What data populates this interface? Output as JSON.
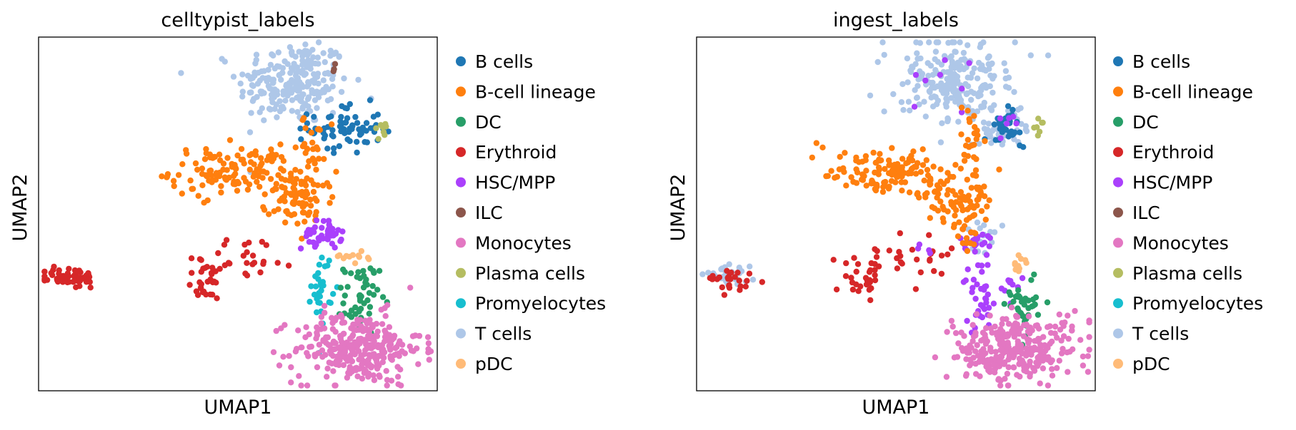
{
  "chart_data": [
    {
      "type": "scatter",
      "title": "celltypist_labels",
      "xlabel": "UMAP1",
      "ylabel": "UMAP2",
      "grid": false,
      "ticks": false,
      "legend_placement": "right",
      "categories": [
        "B cells",
        "B-cell lineage",
        "DC",
        "Erythroid",
        "HSC/MPP",
        "ILC",
        "Monocytes",
        "Plasma cells",
        "Promyelocytes",
        "T cells",
        "pDC"
      ],
      "colors": [
        "#1f77b4",
        "#ff7f0e",
        "#279e68",
        "#d62728",
        "#aa40fc",
        "#8c564b",
        "#e377c2",
        "#b5bd61",
        "#17becf",
        "#aec7e8",
        "#ffbb78"
      ],
      "clusters": [
        {
          "label": "T cells",
          "cx": 0.64,
          "cy": 0.87,
          "sx": 0.07,
          "sy": 0.06,
          "n": 230
        },
        {
          "label": "ILC",
          "cx": 0.74,
          "cy": 0.91,
          "sx": 0.006,
          "sy": 0.006,
          "n": 3
        },
        {
          "label": "B cells",
          "cx": 0.77,
          "cy": 0.74,
          "sx": 0.045,
          "sy": 0.035,
          "n": 70
        },
        {
          "label": "Plasma cells",
          "cx": 0.86,
          "cy": 0.74,
          "sx": 0.01,
          "sy": 0.012,
          "n": 8
        },
        {
          "label": "B-cell lineage",
          "cx": 0.49,
          "cy": 0.62,
          "sx": 0.08,
          "sy": 0.035,
          "n": 130
        },
        {
          "label": "B-cell lineage",
          "cx": 0.66,
          "cy": 0.54,
          "sx": 0.04,
          "sy": 0.04,
          "n": 80
        },
        {
          "label": "B-cell lineage",
          "cx": 0.69,
          "cy": 0.7,
          "sx": 0.015,
          "sy": 0.04,
          "n": 25
        },
        {
          "label": "HSC/MPP",
          "cx": 0.71,
          "cy": 0.44,
          "sx": 0.025,
          "sy": 0.02,
          "n": 40
        },
        {
          "label": "pDC",
          "cx": 0.79,
          "cy": 0.38,
          "sx": 0.025,
          "sy": 0.01,
          "n": 12
        },
        {
          "label": "Promyelocytes",
          "cx": 0.71,
          "cy": 0.3,
          "sx": 0.013,
          "sy": 0.05,
          "n": 30
        },
        {
          "label": "DC",
          "cx": 0.81,
          "cy": 0.26,
          "sx": 0.022,
          "sy": 0.05,
          "n": 50
        },
        {
          "label": "Monocytes",
          "cx": 0.8,
          "cy": 0.12,
          "sx": 0.08,
          "sy": 0.05,
          "n": 300
        },
        {
          "label": "Erythroid",
          "cx": 0.08,
          "cy": 0.32,
          "sx": 0.035,
          "sy": 0.015,
          "n": 55
        },
        {
          "label": "Erythroid",
          "cx": 0.42,
          "cy": 0.31,
          "sx": 0.025,
          "sy": 0.03,
          "n": 30
        },
        {
          "label": "Erythroid",
          "cx": 0.53,
          "cy": 0.38,
          "sx": 0.06,
          "sy": 0.03,
          "n": 25
        }
      ]
    },
    {
      "type": "scatter",
      "title": "ingest_labels",
      "xlabel": "UMAP1",
      "ylabel": "UMAP2",
      "grid": false,
      "ticks": false,
      "legend_placement": "right",
      "categories": [
        "B cells",
        "B-cell lineage",
        "DC",
        "Erythroid",
        "HSC/MPP",
        "ILC",
        "Monocytes",
        "Plasma cells",
        "Promyelocytes",
        "T cells",
        "pDC"
      ],
      "colors": [
        "#1f77b4",
        "#ff7f0e",
        "#279e68",
        "#d62728",
        "#aa40fc",
        "#8c564b",
        "#e377c2",
        "#b5bd61",
        "#17becf",
        "#aec7e8",
        "#ffbb78"
      ],
      "clusters": [
        {
          "label": "T cells",
          "cx": 0.64,
          "cy": 0.87,
          "sx": 0.07,
          "sy": 0.06,
          "n": 220
        },
        {
          "label": "HSC/MPP",
          "cx": 0.64,
          "cy": 0.87,
          "sx": 0.06,
          "sy": 0.05,
          "n": 8
        },
        {
          "label": "T cells",
          "cx": 0.77,
          "cy": 0.74,
          "sx": 0.04,
          "sy": 0.035,
          "n": 40
        },
        {
          "label": "B cells",
          "cx": 0.79,
          "cy": 0.74,
          "sx": 0.03,
          "sy": 0.03,
          "n": 30
        },
        {
          "label": "HSC/MPP",
          "cx": 0.79,
          "cy": 0.76,
          "sx": 0.02,
          "sy": 0.02,
          "n": 6
        },
        {
          "label": "Plasma cells",
          "cx": 0.86,
          "cy": 0.74,
          "sx": 0.01,
          "sy": 0.012,
          "n": 7
        },
        {
          "label": "B-cell lineage",
          "cx": 0.49,
          "cy": 0.62,
          "sx": 0.08,
          "sy": 0.035,
          "n": 130
        },
        {
          "label": "B-cell lineage",
          "cx": 0.66,
          "cy": 0.54,
          "sx": 0.04,
          "sy": 0.04,
          "n": 80
        },
        {
          "label": "B-cell lineage",
          "cx": 0.69,
          "cy": 0.7,
          "sx": 0.015,
          "sy": 0.04,
          "n": 25
        },
        {
          "label": "T cells",
          "cx": 0.72,
          "cy": 0.44,
          "sx": 0.02,
          "sy": 0.025,
          "n": 15
        },
        {
          "label": "HSC/MPP",
          "cx": 0.7,
          "cy": 0.42,
          "sx": 0.02,
          "sy": 0.02,
          "n": 20
        },
        {
          "label": "B-cell lineage",
          "cx": 0.68,
          "cy": 0.43,
          "sx": 0.015,
          "sy": 0.02,
          "n": 12
        },
        {
          "label": "pDC",
          "cx": 0.81,
          "cy": 0.36,
          "sx": 0.01,
          "sy": 0.02,
          "n": 10
        },
        {
          "label": "HSC/MPP",
          "cx": 0.71,
          "cy": 0.28,
          "sx": 0.02,
          "sy": 0.05,
          "n": 35
        },
        {
          "label": "HSC/MPP",
          "cx": 0.78,
          "cy": 0.29,
          "sx": 0.015,
          "sy": 0.02,
          "n": 10
        },
        {
          "label": "DC",
          "cx": 0.82,
          "cy": 0.24,
          "sx": 0.02,
          "sy": 0.04,
          "n": 40
        },
        {
          "label": "Monocytes",
          "cx": 0.8,
          "cy": 0.12,
          "sx": 0.08,
          "sy": 0.05,
          "n": 300
        },
        {
          "label": "T cells",
          "cx": 0.08,
          "cy": 0.33,
          "sx": 0.03,
          "sy": 0.015,
          "n": 35
        },
        {
          "label": "Erythroid",
          "cx": 0.09,
          "cy": 0.31,
          "sx": 0.03,
          "sy": 0.012,
          "n": 25
        },
        {
          "label": "Erythroid",
          "cx": 0.42,
          "cy": 0.31,
          "sx": 0.025,
          "sy": 0.03,
          "n": 30
        },
        {
          "label": "Erythroid",
          "cx": 0.53,
          "cy": 0.38,
          "sx": 0.06,
          "sy": 0.03,
          "n": 25
        },
        {
          "label": "HSC/MPP",
          "cx": 0.58,
          "cy": 0.4,
          "sx": 0.02,
          "sy": 0.01,
          "n": 4
        }
      ]
    }
  ]
}
